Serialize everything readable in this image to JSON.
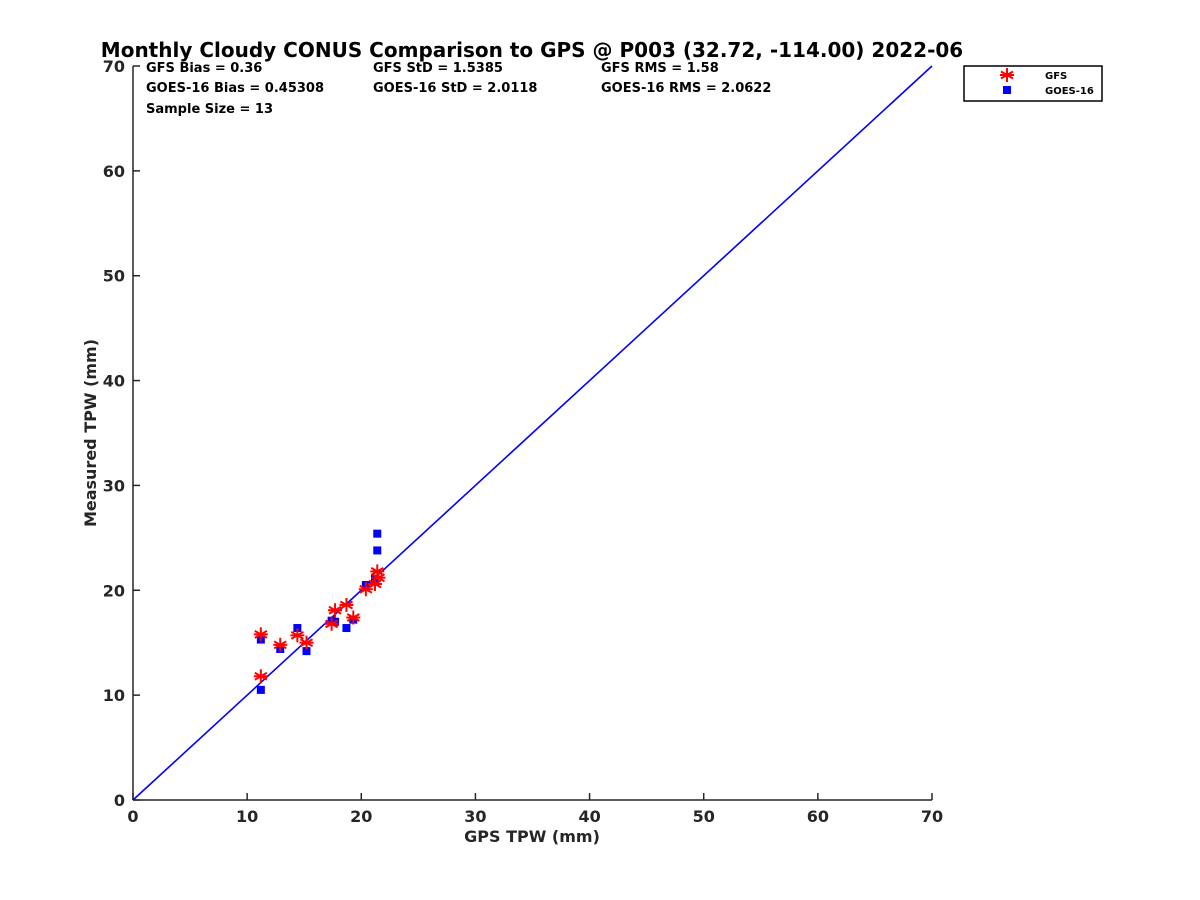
{
  "chart_data": {
    "type": "scatter",
    "title": "Monthly Cloudy CONUS Comparison to GPS @ P003 (32.72, -114.00) 2022-06",
    "xlabel": "GPS TPW (mm)",
    "ylabel": "Measured TPW (mm)",
    "xlim": [
      0,
      70
    ],
    "ylim": [
      0,
      70
    ],
    "xticks": [
      "0",
      "10",
      "20",
      "30",
      "40",
      "50",
      "60",
      "70"
    ],
    "yticks": [
      "0",
      "10",
      "20",
      "30",
      "40",
      "50",
      "60",
      "70"
    ],
    "grid": false,
    "legend_position": "outside top-right",
    "stats": {
      "gfs_bias": "GFS Bias = 0.36",
      "goes_bias": "GOES-16 Bias = 0.45308",
      "sample_size": "Sample Size = 13",
      "gfs_std": "GFS StD = 1.5385",
      "goes_std": "GOES-16 StD = 2.0118",
      "gfs_rms": "GFS RMS = 1.58",
      "goes_rms": "GOES-16 RMS = 2.0622"
    },
    "reference_line": {
      "x": [
        0,
        70
      ],
      "y": [
        0,
        70
      ],
      "color": "#0000ff"
    },
    "series": [
      {
        "name": "GFS",
        "marker": "asterisk",
        "color": "#ff0000",
        "points": [
          [
            11.2,
            15.8
          ],
          [
            11.2,
            11.8
          ],
          [
            12.9,
            14.8
          ],
          [
            14.4,
            15.7
          ],
          [
            15.2,
            15.0
          ],
          [
            17.4,
            16.8
          ],
          [
            17.7,
            18.1
          ],
          [
            18.7,
            18.6
          ],
          [
            19.3,
            17.4
          ],
          [
            20.4,
            20.1
          ],
          [
            21.2,
            20.6
          ],
          [
            21.5,
            21.2
          ],
          [
            21.4,
            21.8
          ]
        ]
      },
      {
        "name": "GOES-16",
        "marker": "square",
        "color": "#0000ff",
        "points": [
          [
            11.2,
            15.3
          ],
          [
            11.2,
            10.5
          ],
          [
            12.9,
            14.4
          ],
          [
            14.4,
            16.4
          ],
          [
            15.2,
            14.2
          ],
          [
            17.4,
            17.1
          ],
          [
            17.7,
            17.0
          ],
          [
            18.7,
            16.4
          ],
          [
            19.3,
            17.2
          ],
          [
            20.4,
            20.5
          ],
          [
            21.2,
            21.1
          ],
          [
            21.4,
            23.8
          ],
          [
            21.4,
            25.4
          ]
        ]
      }
    ]
  }
}
